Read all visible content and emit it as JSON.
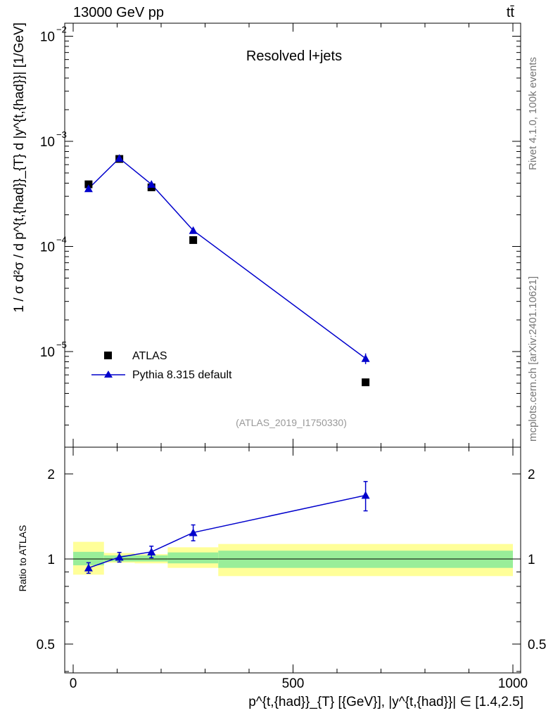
{
  "header": {
    "energy_label": "13000 GeV pp",
    "process_label": "tt̄",
    "rivet_label": "Rivet 4.1.0,  100k events",
    "site_label": "mcplots.cern.ch [arXiv:2401.10621]"
  },
  "chart_data": [
    {
      "type": "scatter",
      "title": "Resolved l+jets",
      "analysis_id": "(ATLAS_2019_I1750330)",
      "ylabel": "1 / σ d²σ / d p^{t,{had}}_{T} d |y^{t,{had}}| [1/GeV]",
      "yscale": "log",
      "ylim": [
        1.6e-06,
        0.013
      ],
      "xlim": [
        -40,
        1030
      ],
      "y_ticks": [
        {
          "value": 1e-05,
          "label": "10",
          "exp": "−5"
        },
        {
          "value": 0.0001,
          "label": "10",
          "exp": "−4"
        },
        {
          "value": 0.001,
          "label": "10",
          "exp": "−3"
        },
        {
          "value": 0.01,
          "label": "10",
          "exp": "−2"
        }
      ],
      "series": [
        {
          "name": "ATLAS",
          "marker": "square",
          "color": "#000000",
          "x": [
            35,
            105,
            178,
            273,
            665
          ],
          "y": [
            0.00039,
            0.00068,
            0.000365,
            0.000115,
            5.1e-06
          ]
        },
        {
          "name": "Pythia 8.315 default",
          "marker": "triangle",
          "color": "#0000cc",
          "x": [
            35,
            105,
            178,
            273,
            665
          ],
          "y": [
            0.000355,
            0.00069,
            0.00039,
            0.000142,
            8.6e-06
          ],
          "yerr": [
            8e-06,
            1e-05,
            8e-06,
            7e-06,
            1e-06
          ]
        }
      ]
    },
    {
      "type": "ratio",
      "ylabel": "Ratio to ATLAS",
      "ylim": [
        0.38,
        2.35
      ],
      "y_ticks": [
        0.5,
        1,
        2
      ],
      "y_tick_labels": [
        "0.5",
        "1",
        "2"
      ],
      "x_ticks": [
        0,
        500,
        1000
      ],
      "x_tick_labels": [
        "0",
        "500",
        "1000"
      ],
      "xlabel": "p^{t,{had}}_{T} [{GeV}], |y^{t,{had}}| ∈ [1.4,2.5]",
      "bins": [
        {
          "lo": 0,
          "hi": 70,
          "stat_lo": 0.95,
          "stat_hi": 1.06,
          "tot_lo": 0.88,
          "tot_hi": 1.15
        },
        {
          "lo": 70,
          "hi": 140,
          "stat_lo": 0.98,
          "stat_hi": 1.03,
          "tot_lo": 0.97,
          "tot_hi": 1.05
        },
        {
          "lo": 140,
          "hi": 215,
          "stat_lo": 0.98,
          "stat_hi": 1.03,
          "tot_lo": 0.965,
          "tot_hi": 1.04
        },
        {
          "lo": 215,
          "hi": 330,
          "stat_lo": 0.965,
          "stat_hi": 1.055,
          "tot_lo": 0.93,
          "tot_hi": 1.1
        },
        {
          "lo": 330,
          "hi": 1000,
          "stat_lo": 0.93,
          "stat_hi": 1.07,
          "tot_lo": 0.87,
          "tot_hi": 1.13
        }
      ],
      "series": [
        {
          "name": "Pythia 8.315 default",
          "color": "#0000cc",
          "x": [
            35,
            105,
            178,
            273,
            665
          ],
          "y": [
            0.93,
            1.015,
            1.06,
            1.24,
            1.68
          ],
          "yerr": [
            0.04,
            0.04,
            0.05,
            0.08,
            0.2
          ]
        }
      ]
    }
  ]
}
